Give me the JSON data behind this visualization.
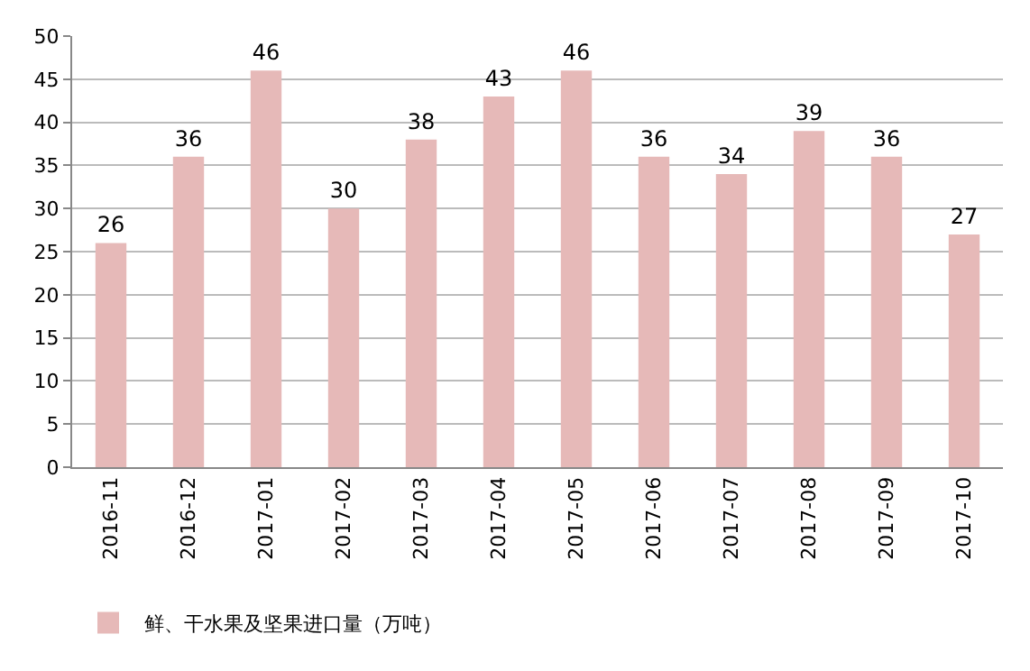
{
  "chart_data": {
    "type": "bar",
    "categories": [
      "2016-11",
      "2016-12",
      "2017-01",
      "2017-02",
      "2017-03",
      "2017-04",
      "2017-05",
      "2017-06",
      "2017-07",
      "2017-08",
      "2017-09",
      "2017-10"
    ],
    "series": [
      {
        "name": "鲜、干水果及坚果进口量（万吨）",
        "color": "#e6b9b8",
        "values": [
          26,
          36,
          46,
          30,
          38,
          43,
          46,
          36,
          34,
          39,
          36,
          27
        ]
      }
    ],
    "ylim": [
      0,
      50
    ],
    "yticks": [
      0,
      5,
      10,
      15,
      20,
      25,
      30,
      35,
      40,
      45,
      50
    ],
    "grid": "y",
    "legend": "bottom left",
    "data_labels": true
  }
}
